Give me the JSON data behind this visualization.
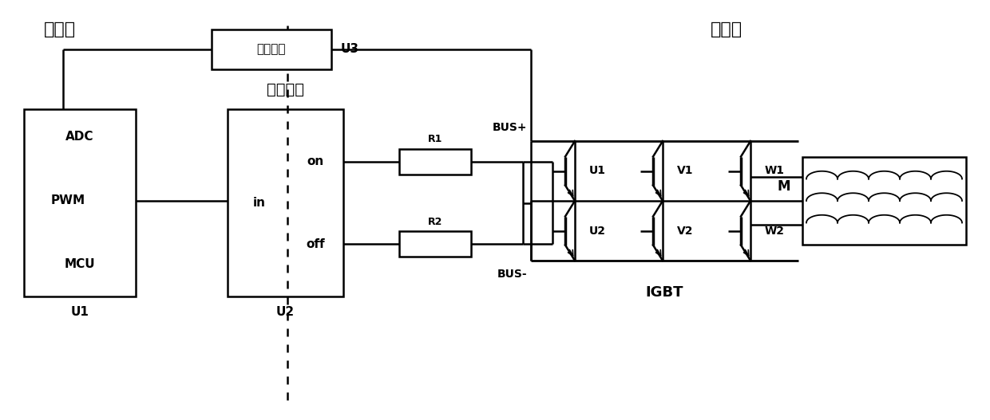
{
  "bg": "#ffffff",
  "lc": "#000000",
  "title_low": "低压侧",
  "title_high": "高压侧",
  "iso_sample": "隔离采样",
  "iso_drive": "隔离驱动",
  "igbt": "IGBT",
  "ADC": "ADC",
  "PWM": "PWM",
  "MCU": "MCU",
  "in": "in",
  "on": "on",
  "off": "off",
  "R1": "R1",
  "R2": "R2",
  "BUSp": "BUS+",
  "BUSm": "BUS-",
  "U1_mcu": "U1",
  "U2_box": "U2",
  "U3": "U3",
  "U1": "U1",
  "U2": "U2",
  "V1": "V1",
  "V2": "V2",
  "W1": "W1",
  "W2": "W2",
  "M": "M",
  "figw": 12.4,
  "figh": 5.27,
  "dpi": 100
}
